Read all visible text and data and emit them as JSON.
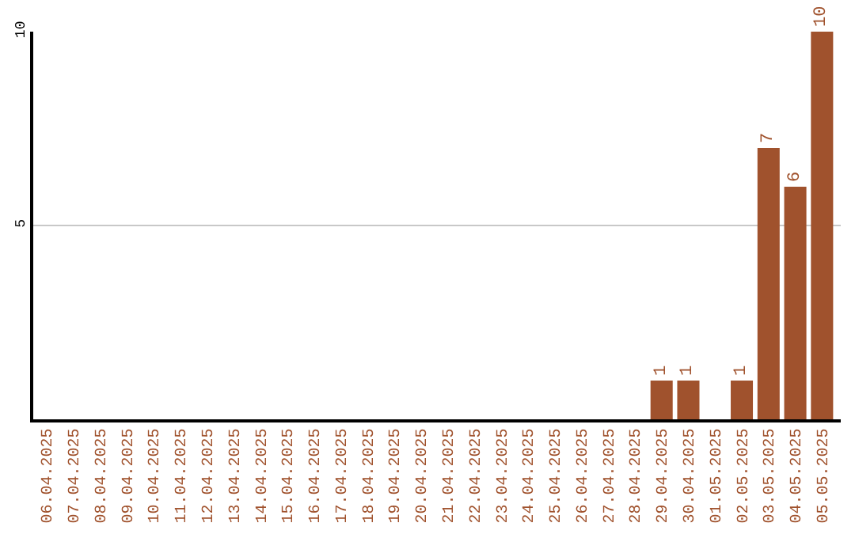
{
  "chart_data": {
    "type": "bar",
    "categories": [
      "06.04.2025",
      "07.04.2025",
      "08.04.2025",
      "09.04.2025",
      "10.04.2025",
      "11.04.2025",
      "12.04.2025",
      "13.04.2025",
      "14.04.2025",
      "15.04.2025",
      "16.04.2025",
      "17.04.2025",
      "18.04.2025",
      "19.04.2025",
      "20.04.2025",
      "21.04.2025",
      "22.04.2025",
      "23.04.2025",
      "24.04.2025",
      "25.04.2025",
      "26.04.2025",
      "27.04.2025",
      "28.04.2025",
      "29.04.2025",
      "30.04.2025",
      "01.05.2025",
      "02.05.2025",
      "03.05.2025",
      "04.05.2025",
      "05.05.2025"
    ],
    "values": [
      0,
      0,
      0,
      0,
      0,
      0,
      0,
      0,
      0,
      0,
      0,
      0,
      0,
      0,
      0,
      0,
      0,
      0,
      0,
      0,
      0,
      0,
      0,
      1,
      1,
      0,
      1,
      7,
      6,
      10
    ],
    "value_labels": [
      null,
      null,
      null,
      null,
      null,
      null,
      null,
      null,
      null,
      null,
      null,
      null,
      null,
      null,
      null,
      null,
      null,
      null,
      null,
      null,
      null,
      null,
      null,
      "1",
      "1",
      null,
      "1",
      "7",
      "6",
      "10"
    ],
    "color": "#a0522d",
    "ylim": [
      0,
      10
    ],
    "yticks": [
      5,
      10
    ],
    "grid": "y"
  }
}
